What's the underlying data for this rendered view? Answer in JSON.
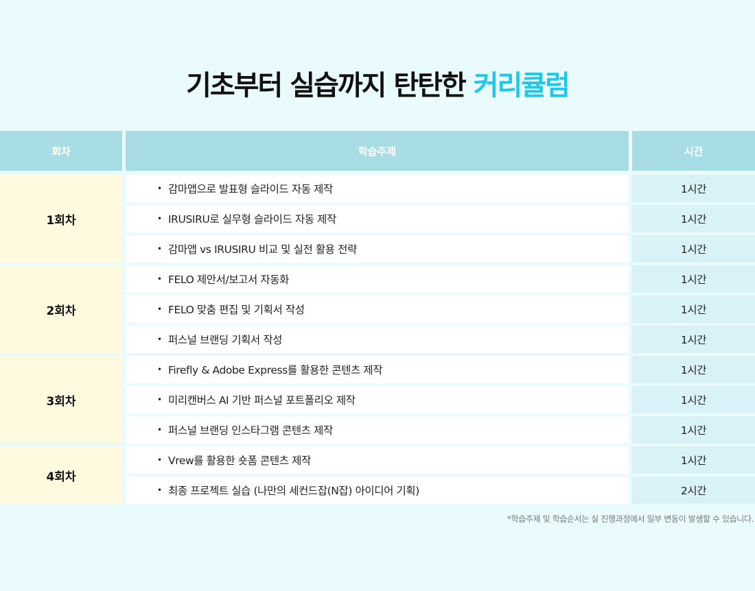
{
  "title": {
    "main": "기초부터 실습까지 탄탄한 ",
    "accent": "커리큘럼",
    "accent_color": "#1ec8ea"
  },
  "table": {
    "headers": [
      "회차",
      "학습주제",
      "시간"
    ],
    "sessions": [
      {
        "label": "1회차",
        "rows": [
          {
            "topic": "감마앱으로 발표형 슬라이드 자동 제작",
            "time": "1시간"
          },
          {
            "topic": "IRUSIRU로 실무형 슬라이드 자동 제작",
            "time": "1시간"
          },
          {
            "topic": "감마앱 vs IRUSIRU 비교 및 실전 활용 전략",
            "time": "1시간"
          }
        ]
      },
      {
        "label": "2회차",
        "rows": [
          {
            "topic": "FELO 제안서/보고서 자동화",
            "time": "1시간"
          },
          {
            "topic": "FELO 맞춤 편집  및 기획서 작성",
            "time": "1시간"
          },
          {
            "topic": "퍼스널 브랜딩 기획서 작성",
            "time": "1시간"
          }
        ]
      },
      {
        "label": "3회차",
        "rows": [
          {
            "topic": "Firefly & Adobe Express를 활용한 콘텐츠 제작",
            "time": "1시간"
          },
          {
            "topic": "미리캔버스 AI 기반 퍼스널 포트폴리오 제작",
            "time": "1시간"
          },
          {
            "topic": "퍼스널 브랜딩 인스타그램 콘텐츠 제작",
            "time": "1시간"
          }
        ]
      },
      {
        "label": "4회차",
        "rows": [
          {
            "topic": "Vrew를 활용한 숏폼 콘텐츠 제작",
            "time": "1시간"
          },
          {
            "topic": "최종 프로젝트 실습 (나만의 세컨드잡(N잡) 아이디어 기획)",
            "time": "2시간"
          }
        ]
      }
    ]
  },
  "note": "*학습주제 및 학습순서는 실 진행과정에서 일부 변동이 발생할 수 있습니다."
}
